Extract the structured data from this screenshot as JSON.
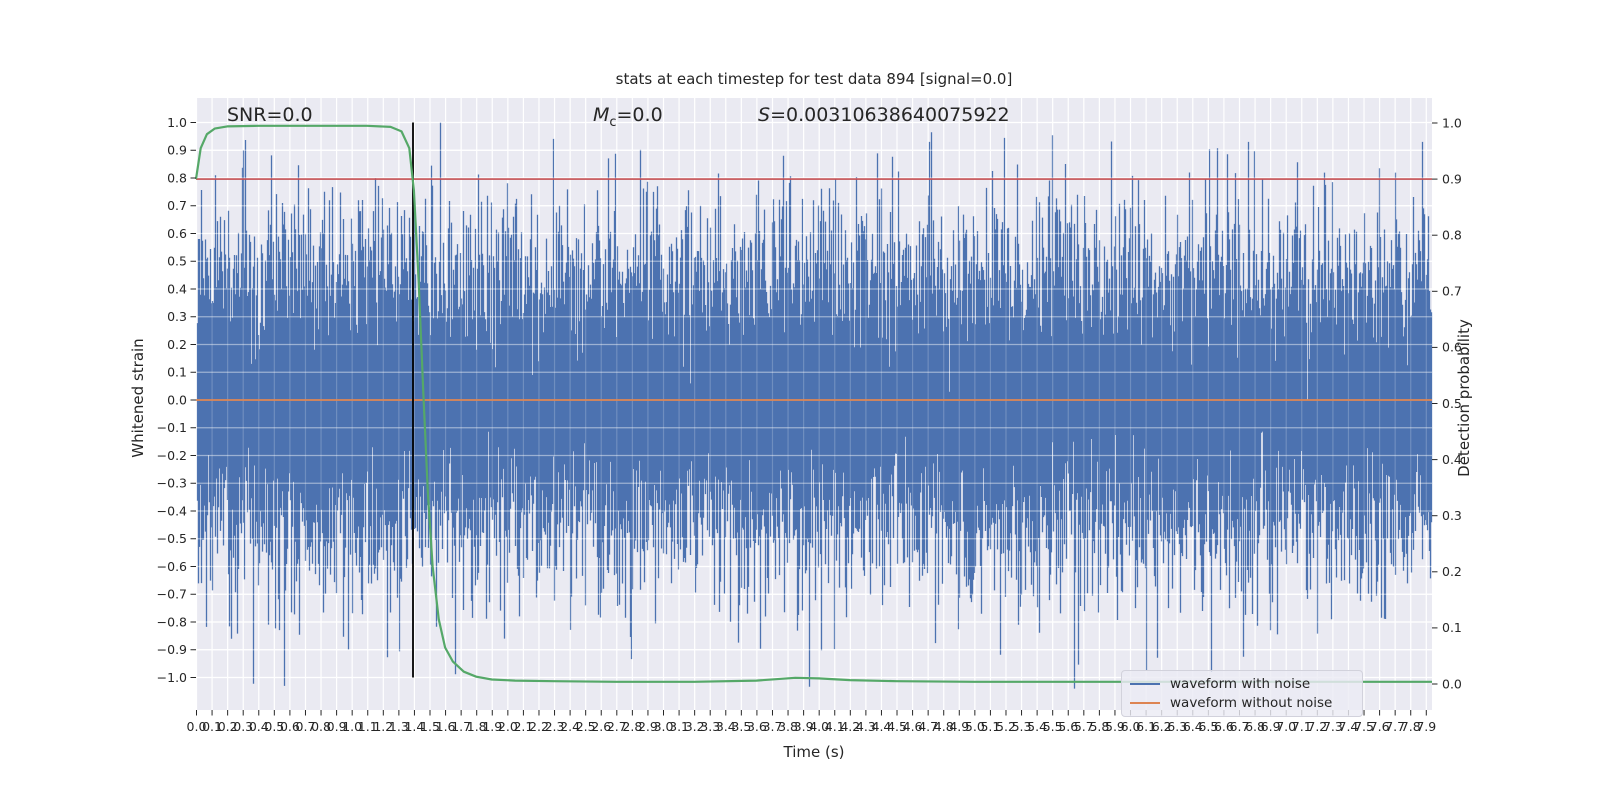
{
  "title": "stats at each timestep for test data 894 [signal=0.0]",
  "annotations": {
    "snr": "SNR=0.0",
    "mc_var": "M",
    "mc_sub": "c",
    "mc_rest": "=0.0",
    "s_var": "S",
    "s_rest": "=0.00310638640075922"
  },
  "axes": {
    "x_label": "Time (s)",
    "y_left_label": "Whitened strain",
    "y_right_label": "Detection probability"
  },
  "legend": {
    "items": [
      {
        "label": "waveform with noise",
        "color": "#4c72b0"
      },
      {
        "label": "waveform without noise",
        "color": "#dd8452"
      }
    ]
  },
  "colors": {
    "plot_bg": "#eaeaf2",
    "grid": "#ffffff",
    "text": "#262626",
    "blue": "#4c72b0",
    "orange": "#dd8452",
    "green": "#55a868",
    "red": "#c44e52",
    "black": "#000000"
  },
  "chart_data": {
    "type": "line",
    "title": "stats at each timestep for test data 894 [signal=0.0]",
    "xlabel": "Time (s)",
    "ylabel_left": "Whitened strain",
    "ylabel_right": "Detection probability",
    "xlim": [
      0.0,
      7.94
    ],
    "ylim_left": [
      -1.1,
      1.09
    ],
    "ylim_right": [
      0.0,
      1.0
    ],
    "grid": true,
    "legend_position": "lower right",
    "x_tick_step": 0.1,
    "x_tick_labels": [
      "0.0",
      "0.1",
      "0.2",
      "0.3",
      "0.4",
      "0.5",
      "0.6",
      "0.7",
      "0.8",
      "0.9",
      "1.0",
      "1.1",
      "1.2",
      "1.3",
      "1.4",
      "1.5",
      "1.6",
      "1.7",
      "1.8",
      "1.9",
      "2.0",
      "2.1",
      "2.2",
      "2.3",
      "2.4",
      "2.5",
      "2.6",
      "2.7",
      "2.8",
      "2.9",
      "3.0",
      "3.1",
      "3.2",
      "3.3",
      "3.4",
      "3.5",
      "3.6",
      "3.7",
      "3.8",
      "3.9",
      "4.0",
      "4.1",
      "4.2",
      "4.3",
      "4.4",
      "4.5",
      "4.6",
      "4.7",
      "4.8",
      "4.9",
      "5.0",
      "5.1",
      "5.2",
      "5.3",
      "5.4",
      "5.5",
      "5.6",
      "5.7",
      "5.8",
      "5.9",
      "6.0",
      "6.1",
      "6.2",
      "6.3",
      "6.4",
      "6.5",
      "6.6",
      "6.7",
      "6.8",
      "6.9",
      "7.0",
      "7.1",
      "7.2",
      "7.3",
      "7.4",
      "7.5",
      "7.6",
      "7.7",
      "7.8",
      "7.9"
    ],
    "y_left_tick_labels": [
      "1.0",
      "0.9",
      "0.8",
      "0.7",
      "0.6",
      "0.5",
      "0.4",
      "0.3",
      "0.2",
      "0.1",
      "0.0",
      "−0.1",
      "−0.2",
      "−0.3",
      "−0.4",
      "−0.5",
      "−0.6",
      "−0.7",
      "−0.8",
      "−0.9",
      "−1.0"
    ],
    "y_right_tick_labels": [
      "1.0",
      "0.9",
      "0.8",
      "0.7",
      "0.6",
      "0.5",
      "0.4",
      "0.3",
      "0.2",
      "0.1",
      "0.0"
    ],
    "series": [
      {
        "name": "waveform with noise",
        "kind": "noise",
        "color": "#4c72b0",
        "axis": "left",
        "seed": 894,
        "sigma": 0.28,
        "samples_per_column": 14,
        "clip": 1.04,
        "notable_spikes": [
          [
            0.3,
            0.9
          ],
          [
            0.55,
            0.71
          ],
          [
            1.15,
            0.8
          ],
          [
            1.57,
            1.0
          ],
          [
            1.98,
            -0.86
          ],
          [
            2.5,
            -0.74
          ],
          [
            2.96,
            0.77
          ],
          [
            3.43,
            -0.8
          ],
          [
            3.6,
            0.74
          ],
          [
            4.71,
            0.93
          ],
          [
            5.04,
            -0.77
          ],
          [
            5.66,
            0.74
          ],
          [
            6.03,
            -0.75
          ],
          [
            6.38,
            0.82
          ],
          [
            6.52,
            -0.98
          ],
          [
            6.76,
            0.93
          ],
          [
            6.9,
            -0.83
          ],
          [
            7.7,
            0.65
          ]
        ]
      },
      {
        "name": "waveform without noise",
        "kind": "constant",
        "color": "#dd8452",
        "axis": "left",
        "value": 0.0
      },
      {
        "name": "detection probability",
        "kind": "curve",
        "color": "#55a868",
        "axis": "right",
        "points": [
          [
            0.0,
            0.9
          ],
          [
            0.03,
            0.955
          ],
          [
            0.07,
            0.98
          ],
          [
            0.12,
            0.99
          ],
          [
            0.2,
            0.994
          ],
          [
            0.4,
            0.995
          ],
          [
            0.8,
            0.995
          ],
          [
            1.1,
            0.995
          ],
          [
            1.25,
            0.993
          ],
          [
            1.32,
            0.985
          ],
          [
            1.37,
            0.955
          ],
          [
            1.4,
            0.88
          ],
          [
            1.43,
            0.72
          ],
          [
            1.46,
            0.52
          ],
          [
            1.49,
            0.34
          ],
          [
            1.52,
            0.21
          ],
          [
            1.56,
            0.115
          ],
          [
            1.6,
            0.065
          ],
          [
            1.65,
            0.04
          ],
          [
            1.72,
            0.022
          ],
          [
            1.8,
            0.013
          ],
          [
            1.9,
            0.008
          ],
          [
            2.05,
            0.006
          ],
          [
            2.3,
            0.005
          ],
          [
            2.7,
            0.004
          ],
          [
            3.2,
            0.004
          ],
          [
            3.6,
            0.006
          ],
          [
            3.85,
            0.011
          ],
          [
            4.0,
            0.01
          ],
          [
            4.2,
            0.007
          ],
          [
            4.5,
            0.005
          ],
          [
            5.0,
            0.004
          ],
          [
            5.5,
            0.004
          ],
          [
            6.0,
            0.004
          ],
          [
            6.5,
            0.004
          ],
          [
            7.0,
            0.004
          ],
          [
            7.5,
            0.004
          ],
          [
            7.94,
            0.004
          ]
        ]
      },
      {
        "name": "detection threshold",
        "kind": "hline",
        "color": "#c44e52",
        "axis": "right",
        "value": 0.9
      },
      {
        "name": "event time marker",
        "kind": "vline",
        "color": "#000000",
        "t": 1.394,
        "v_from": -1.0,
        "v_to": 1.0
      }
    ]
  }
}
